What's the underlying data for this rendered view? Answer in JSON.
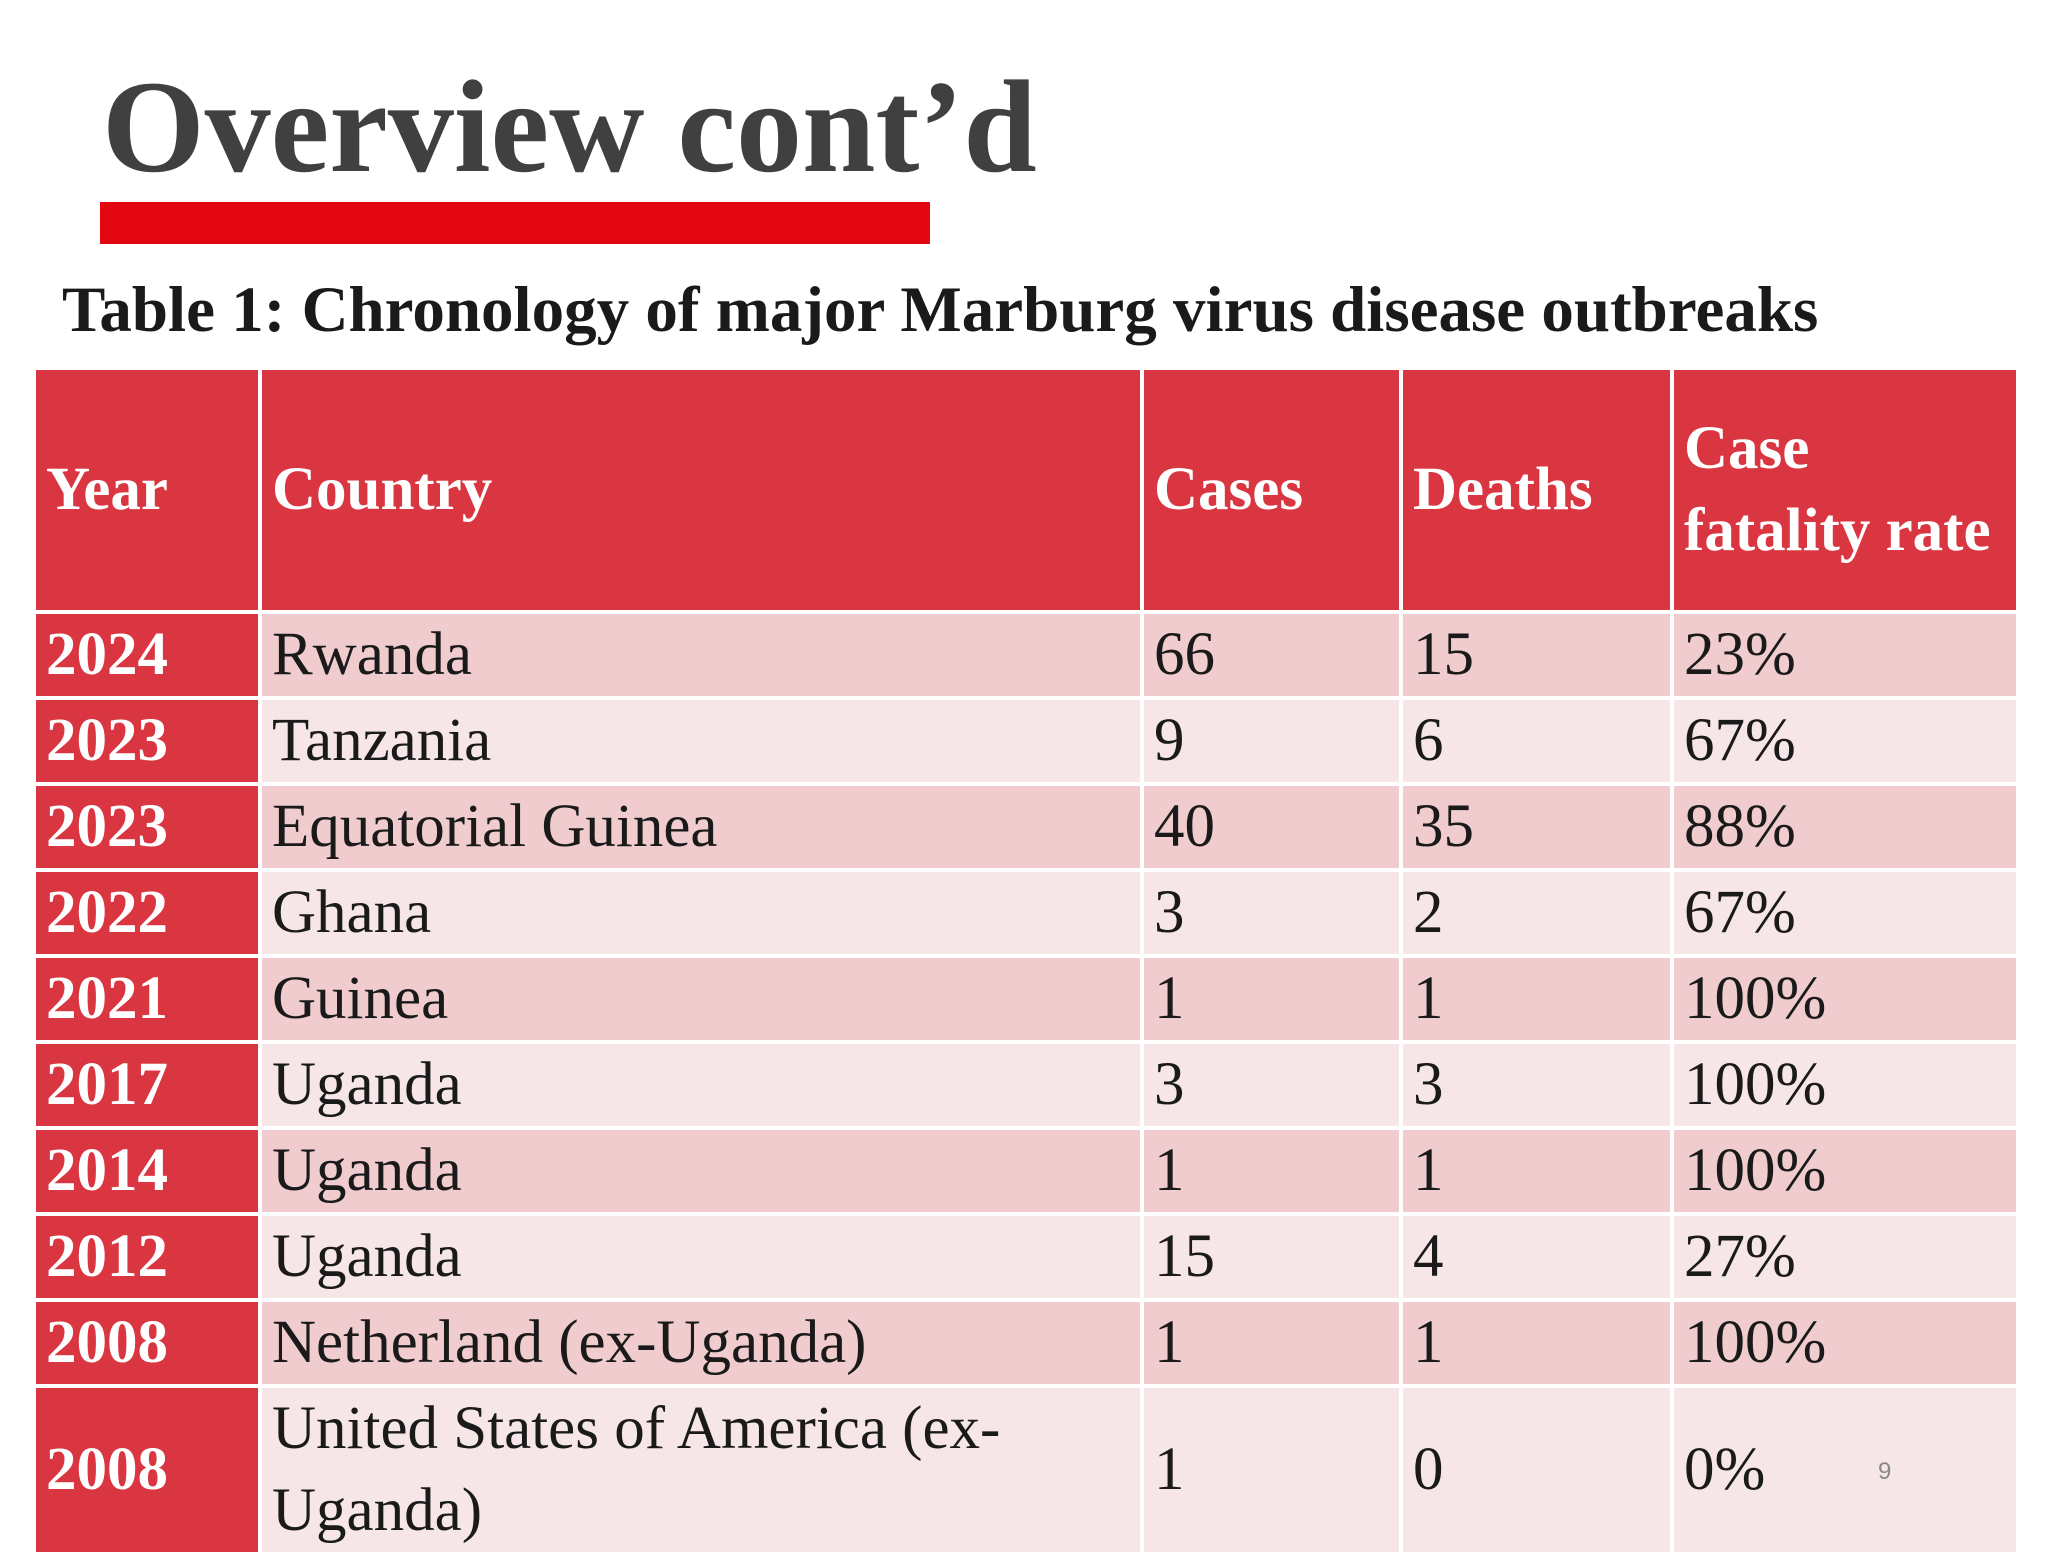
{
  "slide": {
    "title": "Overview cont’d",
    "accent_color": "#e30613",
    "page_number": "9"
  },
  "table": {
    "caption": "Table 1: Chronology of major Marburg virus disease outbreaks",
    "header_color": "#da3641",
    "row_colors": [
      "#f0cccf",
      "#f7e6e8"
    ],
    "headers": {
      "year": "Year",
      "country": "Country",
      "cases": "Cases",
      "deaths": "Deaths",
      "cfr": "Case fatality rate"
    },
    "rows": [
      {
        "year": "2024",
        "country": "Rwanda",
        "cases": "66",
        "deaths": "15",
        "cfr": "23%"
      },
      {
        "year": "2023",
        "country": "Tanzania",
        "cases": "9",
        "deaths": "6",
        "cfr": "67%"
      },
      {
        "year": "2023",
        "country": "Equatorial Guinea",
        "cases": "40",
        "deaths": "35",
        "cfr": "88%"
      },
      {
        "year": "2022",
        "country": "Ghana",
        "cases": "3",
        "deaths": "2",
        "cfr": "67%"
      },
      {
        "year": "2021",
        "country": "Guinea",
        "cases": "1",
        "deaths": "1",
        "cfr": "100%"
      },
      {
        "year": "2017",
        "country": "Uganda",
        "cases": "3",
        "deaths": "3",
        "cfr": "100%"
      },
      {
        "year": "2014",
        "country": "Uganda",
        "cases": "1",
        "deaths": "1",
        "cfr": "100%"
      },
      {
        "year": "2012",
        "country": "Uganda",
        "cases": "15",
        "deaths": "4",
        "cfr": "27%"
      },
      {
        "year": "2008",
        "country": "Netherland (ex-Uganda)",
        "cases": "1",
        "deaths": "1",
        "cfr": "100%"
      },
      {
        "year": "2008",
        "country": "United States of America (ex-Uganda)",
        "cases": "1",
        "deaths": "0",
        "cfr": "0%"
      }
    ]
  }
}
